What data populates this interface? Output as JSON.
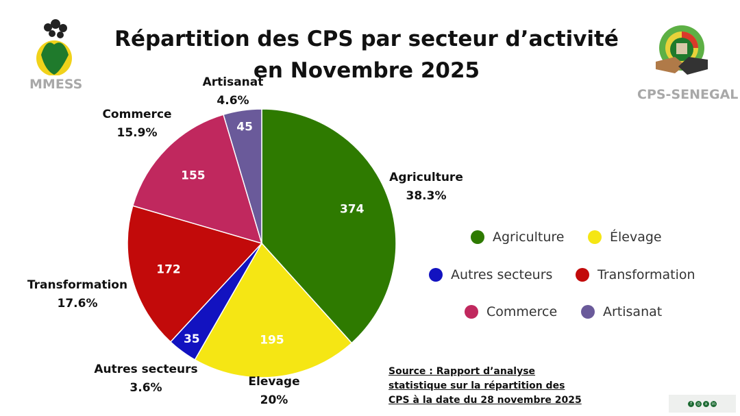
{
  "title": "Répartition des CPS par secteur d’activité en Novembre 2025",
  "logos": {
    "left": "MMESS",
    "right": "CPS-SENEGAL"
  },
  "source": "Source : Rapport d’analyse statistique sur la répartition des CPS à la date du 28 novembre 2025",
  "social_icons": [
    "facebook-icon",
    "instagram-icon",
    "x-icon",
    "linkedin-icon"
  ],
  "chart_data": {
    "type": "pie",
    "title": "Répartition des CPS par secteur d’activité en Novembre 2025",
    "start": "top",
    "direction": "clockwise",
    "legend_position": "right",
    "slices": [
      {
        "name": "Agriculture",
        "value": 374,
        "percent": "38.3%",
        "color": "#2e7a00",
        "label": "Agriculture"
      },
      {
        "name": "Élevage",
        "value": 195,
        "percent": "20%",
        "color": "#f5e614",
        "label": "Elevage"
      },
      {
        "name": "Autres secteurs",
        "value": 35,
        "percent": "3.6%",
        "color": "#1212c0",
        "label": "Autres secteurs"
      },
      {
        "name": "Transformation",
        "value": 172,
        "percent": "17.6%",
        "color": "#c20a0a",
        "label": "Transformation"
      },
      {
        "name": "Commerce",
        "value": 155,
        "percent": "15.9%",
        "color": "#c0285e",
        "label": "Commerce"
      },
      {
        "name": "Artisanat",
        "value": 45,
        "percent": "4.6%",
        "color": "#6a5a9a",
        "label": "Artisanat"
      }
    ],
    "legend": [
      "Agriculture",
      "Élevage",
      "Autres secteurs",
      "Transformation",
      "Commerce",
      "Artisanat"
    ]
  }
}
